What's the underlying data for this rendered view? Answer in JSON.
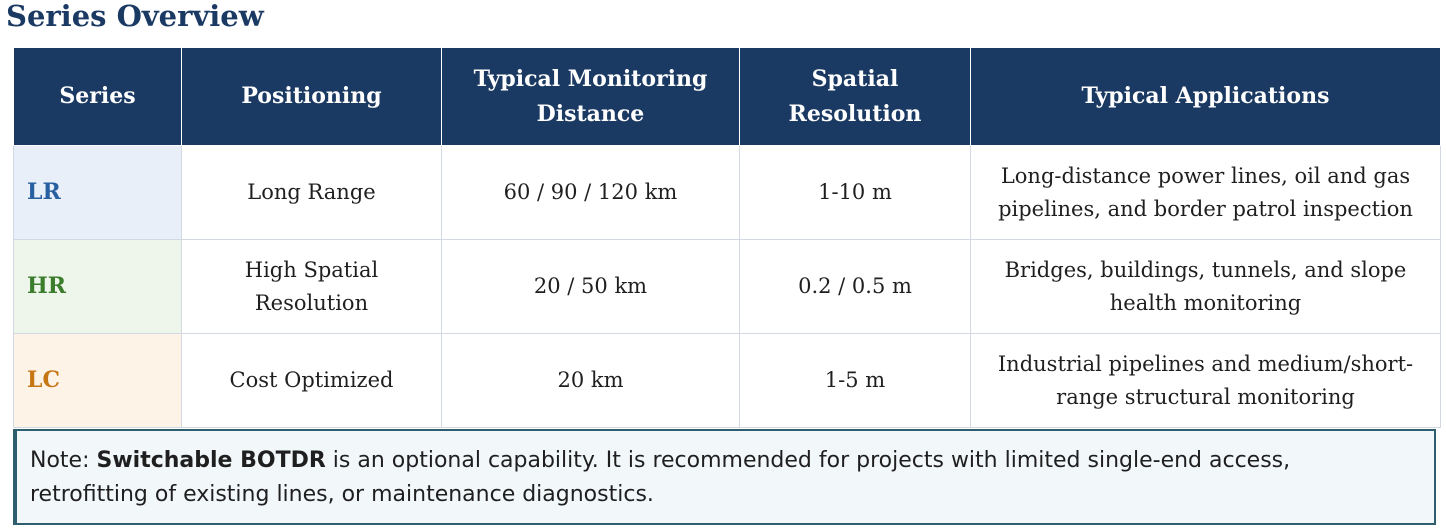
{
  "page": {
    "title": "Series Overview"
  },
  "table": {
    "headers": {
      "series": "Series",
      "positioning": "Positioning",
      "distance_line1": "Typical Monitoring",
      "distance_line2": "Distance",
      "resolution_line1": "Spatial",
      "resolution_line2": "Resolution",
      "applications": "Typical Applications"
    },
    "rows": [
      {
        "series": "LR",
        "series_color": "#285fa0",
        "positioning_line1": "Long Range",
        "positioning_line2": "",
        "distance": "60 / 90 / 120 km",
        "resolution": "1-10 m",
        "applications_line1": "Long-distance power lines, oil and gas",
        "applications_line2": "pipelines, and border patrol inspection"
      },
      {
        "series": "HR",
        "series_color": "#3b7d2d",
        "positioning_line1": "High Spatial",
        "positioning_line2": "Resolution",
        "distance": "20 / 50 km",
        "resolution": "0.2 / 0.5 m",
        "applications_line1": "Bridges, buildings, tunnels, and slope",
        "applications_line2": "health monitoring"
      },
      {
        "series": "LC",
        "series_color": "#c77614",
        "positioning_line1": "Cost Optimized",
        "positioning_line2": "",
        "distance": "20 km",
        "resolution": "1-5 m",
        "applications_line1": "Industrial pipelines and medium/short-",
        "applications_line2": "range structural monitoring"
      }
    ]
  },
  "note": {
    "prefix": "Note: ",
    "highlight": "Switchable BOTDR",
    "text_line1": " is an optional capability. It is recommended for projects with limited single-end access,",
    "text_line2": "retrofitting of existing lines, or maintenance diagnostics."
  }
}
